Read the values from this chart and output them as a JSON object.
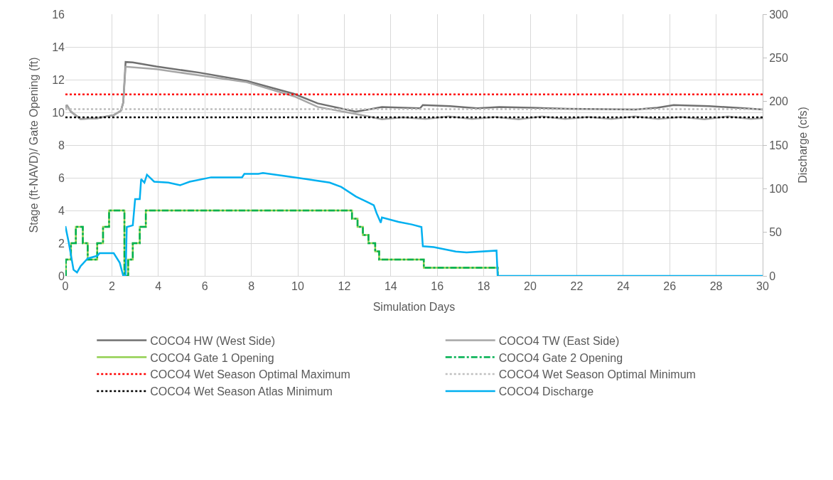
{
  "chart_data": {
    "type": "line",
    "xlabel": "Simulation Days",
    "ylabel": "Stage (ft-NAVD)/ Gate Opening (ft)",
    "y2label": "Discharge (cfs)",
    "xlim": [
      0,
      30
    ],
    "xticks": [
      0,
      2,
      4,
      6,
      8,
      10,
      12,
      14,
      16,
      18,
      20,
      22,
      24,
      26,
      28,
      30
    ],
    "ylim": [
      0,
      16
    ],
    "yticks": [
      0,
      2,
      4,
      6,
      8,
      10,
      12,
      14,
      16
    ],
    "y2lim": [
      0,
      300
    ],
    "y2ticks": [
      0,
      50,
      100,
      150,
      200,
      250,
      300
    ],
    "grid": true,
    "legend": "bottom",
    "marker": "none",
    "series": [
      {
        "name": "COCO4 HW (West Side)",
        "color": "#707070",
        "line_style": "solid",
        "x": [
          0,
          0.06,
          0.24,
          0.65,
          1.37,
          2.08,
          2.39,
          2.49,
          2.59,
          2.9,
          3.92,
          5.76,
          7.8,
          9.84,
          10.86,
          12.49,
          13.04,
          13.62,
          15.26,
          15.38,
          16.55,
          17.72,
          18.67,
          20.07,
          21.6,
          24.53,
          25.47,
          26.17,
          27.7,
          29.22,
          30
        ],
        "values": [
          10.26,
          10.45,
          10.04,
          9.6,
          9.64,
          9.83,
          10.1,
          10.6,
          13.08,
          13.05,
          12.8,
          12.43,
          11.92,
          11.13,
          10.55,
          10.04,
          10.17,
          10.33,
          10.25,
          10.45,
          10.38,
          10.25,
          10.33,
          10.28,
          10.22,
          10.17,
          10.28,
          10.45,
          10.38,
          10.25,
          10.17
        ]
      },
      {
        "name": "COCO4 TW (East Side)",
        "color": "#a6a6a6",
        "line_style": "solid",
        "x": [
          0,
          0.06,
          0.24,
          0.65,
          1.37,
          2.08,
          2.39,
          2.49,
          2.59,
          3.92,
          7.8,
          9.84,
          10.86,
          12.49,
          13.04,
          13.62,
          14.5,
          15.5,
          16.5,
          17.5,
          18.5,
          19.5,
          20.5,
          21.5,
          22.5,
          23.5,
          24.5,
          25.5,
          26.5,
          27.5,
          28.5,
          29.5,
          30
        ],
        "values": [
          10.26,
          10.45,
          10.04,
          9.6,
          9.64,
          9.83,
          10.1,
          10.6,
          12.79,
          12.64,
          11.85,
          10.98,
          10.33,
          9.9,
          9.75,
          9.58,
          9.7,
          9.6,
          9.75,
          9.6,
          9.72,
          9.58,
          9.75,
          9.6,
          9.72,
          9.6,
          9.75,
          9.6,
          9.72,
          9.58,
          9.75,
          9.6,
          9.65
        ]
      },
      {
        "name": "COCO4 Gate 1 Opening",
        "color": "#92d050",
        "line_style": "solid",
        "x": [
          0,
          0.02,
          0.02,
          0.24,
          0.24,
          0.45,
          0.45,
          0.75,
          0.75,
          0.96,
          0.96,
          1.37,
          1.37,
          1.62,
          1.62,
          1.88,
          1.88,
          2.54,
          2.54,
          2.7,
          2.7,
          2.9,
          2.9,
          3.2,
          3.2,
          3.46,
          3.46,
          12.33,
          12.33,
          12.57,
          12.57,
          12.8,
          12.8,
          13.04,
          13.04,
          13.33,
          13.33,
          13.5,
          13.5,
          15.42,
          15.42,
          18.6,
          18.6
        ],
        "values": [
          0,
          0,
          1,
          1,
          2,
          2,
          3,
          3,
          2,
          2,
          1,
          1,
          2,
          2,
          3,
          3,
          4,
          4,
          0,
          0,
          1,
          1,
          2,
          2,
          3,
          3,
          4,
          4,
          3.5,
          3.5,
          3,
          3,
          2.5,
          2.5,
          2,
          2,
          1.5,
          1.5,
          1,
          1,
          0.5,
          0.5,
          0
        ]
      },
      {
        "name": "COCO4 Gate 2 Opening",
        "color": "#00b050",
        "line_style": "dashdot",
        "x": [
          0,
          0.02,
          0.02,
          0.24,
          0.24,
          0.45,
          0.45,
          0.75,
          0.75,
          0.96,
          0.96,
          1.37,
          1.37,
          1.62,
          1.62,
          1.88,
          1.88,
          2.54,
          2.54,
          2.7,
          2.7,
          2.9,
          2.9,
          3.2,
          3.2,
          3.46,
          3.46,
          12.33,
          12.33,
          12.57,
          12.57,
          12.8,
          12.8,
          13.04,
          13.04,
          13.33,
          13.33,
          13.5,
          13.5,
          15.42,
          15.42,
          18.6,
          18.6
        ],
        "values": [
          0,
          0,
          1,
          1,
          2,
          2,
          3,
          3,
          2,
          2,
          1,
          1,
          2,
          2,
          3,
          3,
          4,
          4,
          0,
          0,
          1,
          1,
          2,
          2,
          3,
          3,
          4,
          4,
          3.5,
          3.5,
          3,
          3,
          2.5,
          2.5,
          2,
          2,
          1.5,
          1.5,
          1,
          1,
          0.5,
          0.5,
          0
        ]
      },
      {
        "name": "COCO4 Discharge",
        "color": "#00b0f0",
        "line_style": "solid",
        "axis": "y2",
        "x": [
          0,
          0.14,
          0.35,
          0.5,
          0.65,
          0.96,
          1.37,
          1.47,
          2.08,
          2.34,
          2.49,
          2.59,
          2.64,
          2.9,
          3.0,
          3.2,
          3.26,
          3.4,
          3.51,
          3.82,
          4.43,
          4.94,
          5.35,
          6.27,
          7.6,
          7.7,
          8.3,
          8.5,
          9.33,
          10.35,
          11.37,
          11.87,
          12.5,
          13.04,
          13.27,
          13.39,
          13.57,
          13.62,
          14.33,
          14.9,
          15.32,
          15.38,
          15.85,
          16.8,
          17.26,
          18.55,
          18.6,
          30
        ],
        "values": [
          57,
          39,
          7,
          4,
          11,
          20,
          23,
          26,
          26,
          15,
          0,
          0,
          56,
          58,
          88,
          88,
          111,
          107,
          116,
          108,
          107,
          104,
          108,
          113,
          113,
          117,
          117,
          118,
          115,
          111,
          107,
          102,
          91,
          84,
          81,
          72,
          61,
          67,
          62,
          59,
          56,
          34,
          33,
          28,
          27,
          29,
          0,
          0
        ]
      }
    ],
    "ref_lines": [
      {
        "axis": "y",
        "value": 11.1,
        "label": "COCO4 Wet Season Optimal Maximum",
        "color": "#ff0000",
        "line_style": "dotted"
      },
      {
        "axis": "y",
        "value": 10.2,
        "label": "COCO4 Wet Season Optimal Minimum",
        "color": "#bfbfbf",
        "line_style": "dotted"
      },
      {
        "axis": "y",
        "value": 9.7,
        "label": "COCO4 Wet Season Atlas Minimum",
        "color": "#000000",
        "line_style": "dotted"
      }
    ]
  }
}
